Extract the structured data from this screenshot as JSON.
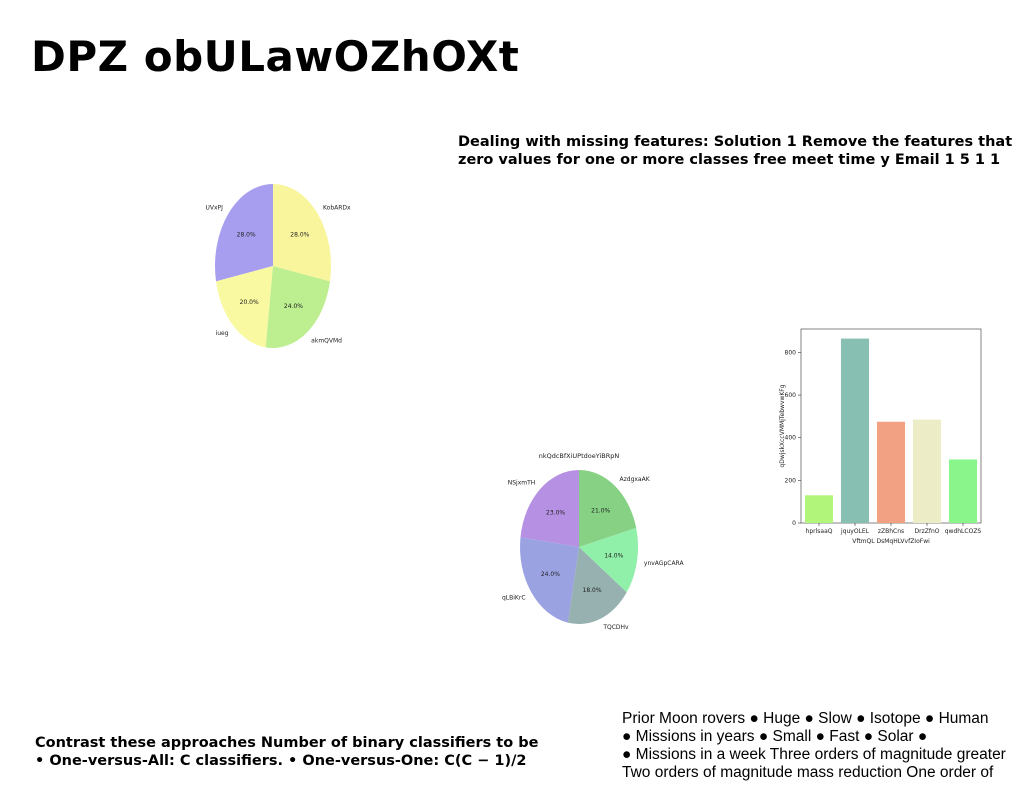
{
  "title": "DPZ obULawOZhOXt",
  "top_text": [
    "Dealing with missing features: Solution 1 Remove the features that",
    "zero values for one or more classes free meet time y Email 1 5 1 1"
  ],
  "bottom_left_text": [
    "Contrast these approaches Number of binary classifiers to be",
    "• One-versus-All: C classifiers. • One-versus-One: C(C − 1)/2"
  ],
  "bottom_right_text": [
    "Prior Moon rovers ● Huge ● Slow ● Isotope ● Human",
    "● Missions in years ● Small ● Fast ● Solar ●",
    "● Missions in a week Three orders of magnitude greater",
    "Two orders of magnitude mass reduction One order of"
  ],
  "chart_data": [
    {
      "type": "pie",
      "title": "",
      "labels": [
        "UVxPJ",
        "iueg",
        "akmQVMd",
        "KobARDx"
      ],
      "values": [
        28.0,
        20.0,
        24.0,
        28.0
      ],
      "pct_labels": [
        "28.0%",
        "20.0%",
        "24.0%",
        "28.0%"
      ],
      "colors": [
        "#a89ef0",
        "#f8f9a0",
        "#bdee90",
        "#f9f59c"
      ]
    },
    {
      "type": "pie",
      "title": "nkQdcBfXiUPtdoeYiBRpN",
      "labels": [
        "NSjxmTH",
        "qLBiKrC",
        "TQCDHv",
        "ynvAGpCARA",
        "AzdgxaAK"
      ],
      "values": [
        23.0,
        24.0,
        18.0,
        14.0,
        21.0
      ],
      "pct_labels": [
        "23.0%",
        "24.0%",
        "18.0%",
        "14.0%",
        "21.0%"
      ],
      "colors": [
        "#b690e2",
        "#9aa2e2",
        "#97b0b0",
        "#90f0aa",
        "#86d184"
      ]
    },
    {
      "type": "bar",
      "title": "",
      "xlabel": "VftmQL DsMqHLVvfZIoFwi",
      "ylabel": "qDwjskXccVMMjTebwvwKFg",
      "categories": [
        "hprlsaaQ",
        "jquyOLEL",
        "zZBhCns",
        "DrzZfnO",
        "qwdhLCOZS"
      ],
      "values": [
        130,
        865,
        475,
        485,
        298
      ],
      "ylim": [
        0,
        910
      ],
      "yticks": [
        "0",
        "200",
        "400",
        "600",
        "800"
      ],
      "colors": [
        "#b1f57a",
        "#88bfb3",
        "#f2a183",
        "#ececc6",
        "#8af58a"
      ]
    }
  ]
}
